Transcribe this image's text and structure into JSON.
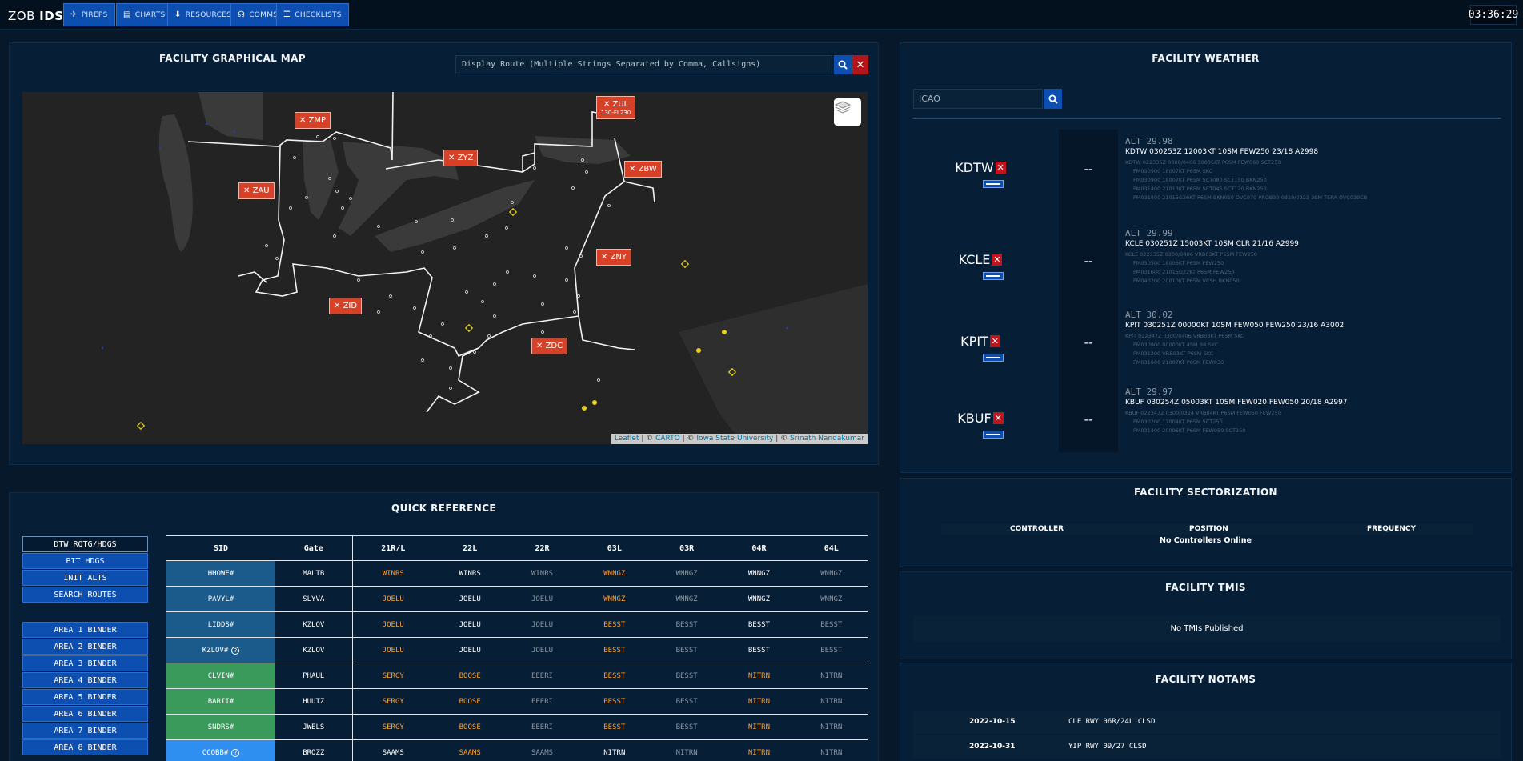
{
  "brand": {
    "name": "ZOB",
    "suffix": "IDS"
  },
  "nav": [
    {
      "label": "PIREPS",
      "icon": "pirep-icon"
    },
    {
      "label": "CHARTS",
      "icon": "charts-icon"
    },
    {
      "label": "RESOURCES",
      "icon": "resources-icon"
    },
    {
      "label": "COMMS",
      "icon": "headset-icon"
    },
    {
      "label": "CHECKLISTS",
      "icon": "list-icon"
    }
  ],
  "clock": "03:36:29",
  "map_panel": {
    "title": "FACILITY GRAPHICAL MAP",
    "route_placeholder": "Display Route (Multiple Strings Separated by Comma, Callsigns)",
    "clear_label": "✕",
    "artccs": [
      {
        "id": "ZMP",
        "sub": ""
      },
      {
        "id": "ZUL",
        "sub": "130-FL230"
      },
      {
        "id": "ZYZ",
        "sub": ""
      },
      {
        "id": "ZBW",
        "sub": ""
      },
      {
        "id": "ZAU",
        "sub": ""
      },
      {
        "id": "ZNY",
        "sub": ""
      },
      {
        "id": "ZID",
        "sub": ""
      },
      {
        "id": "ZDC",
        "sub": ""
      }
    ],
    "attribution": {
      "leaflet": "Leaflet",
      "carto": "CARTO",
      "isu": "Iowa State University",
      "author": "Srinath Nandakumar"
    }
  },
  "quick_reference": {
    "title": "QUICK REFERENCE",
    "side_buttons": [
      "DTW RQTG/HDGS",
      "PIT HDGS",
      "INIT ALTS",
      "SEARCH ROUTES"
    ],
    "binders": [
      "AREA 1 BINDER",
      "AREA 2 BINDER",
      "AREA 3 BINDER",
      "AREA 4 BINDER",
      "AREA 5 BINDER",
      "AREA 6 BINDER",
      "AREA 7 BINDER",
      "AREA 8 BINDER"
    ],
    "columns": [
      "SID",
      "Gate",
      "21R/L",
      "22L",
      "22R",
      "03L",
      "03R",
      "04R",
      "04L"
    ],
    "rows": [
      {
        "sid": "HHOWE#",
        "sid_color": "#1a5b8c",
        "gate": "MALTB",
        "cells": [
          "WINRS",
          "WINRS",
          "WINRS",
          "WNNGZ",
          "WNNGZ",
          "WNNGZ",
          "WNNGZ"
        ],
        "styles": [
          "o",
          "w",
          "g",
          "o",
          "g",
          "w",
          "g"
        ]
      },
      {
        "sid": "PAVYL#",
        "sid_color": "#1a5b8c",
        "gate": "SLYVA",
        "cells": [
          "JOELU",
          "JOELU",
          "JOELU",
          "WNNGZ",
          "WNNGZ",
          "WNNGZ",
          "WNNGZ"
        ],
        "styles": [
          "o",
          "w",
          "g",
          "o",
          "g",
          "w",
          "g"
        ]
      },
      {
        "sid": "LIDDS#",
        "sid_color": "#1a5b8c",
        "gate": "KZLOV",
        "cells": [
          "JOELU",
          "JOELU",
          "JOELU",
          "BESST",
          "BESST",
          "BESST",
          "BESST"
        ],
        "styles": [
          "o",
          "w",
          "g",
          "o",
          "g",
          "w",
          "g"
        ]
      },
      {
        "sid": "KZLOV#",
        "sid_help": "?",
        "sid_color": "#1a5b8c",
        "gate": "KZLOV",
        "cells": [
          "JOELU",
          "JOELU",
          "JOELU",
          "BESST",
          "BESST",
          "BESST",
          "BESST"
        ],
        "styles": [
          "o",
          "w",
          "g",
          "o",
          "g",
          "w",
          "g"
        ]
      },
      {
        "sid": "CLVIN#",
        "sid_color": "#3a9a5c",
        "gate": "PHAUL",
        "cells": [
          "SERGY",
          "BOOSE",
          "EEERI",
          "BESST",
          "BESST",
          "NITRN",
          "NITRN"
        ],
        "styles": [
          "o",
          "o",
          "g",
          "o",
          "g",
          "o",
          "g"
        ]
      },
      {
        "sid": "BARII#",
        "sid_color": "#3a9a5c",
        "gate": "HUUTZ",
        "cells": [
          "SERGY",
          "BOOSE",
          "EEERI",
          "BESST",
          "BESST",
          "NITRN",
          "NITRN"
        ],
        "styles": [
          "o",
          "o",
          "g",
          "o",
          "g",
          "o",
          "g"
        ]
      },
      {
        "sid": "SNDRS#",
        "sid_color": "#3a9a5c",
        "gate": "JWELS",
        "cells": [
          "SERGY",
          "BOOSE",
          "EEERI",
          "BESST",
          "BESST",
          "NITRN",
          "NITRN"
        ],
        "styles": [
          "o",
          "o",
          "g",
          "o",
          "g",
          "o",
          "g"
        ]
      },
      {
        "sid": "CCOBB#",
        "sid_help": "?",
        "sid_color": "#2f8ff0",
        "gate": "BROZZ",
        "cells": [
          "SAAMS",
          "SAAMS",
          "SAAMS",
          "NITRN",
          "NITRN",
          "NITRN",
          "NITRN"
        ],
        "styles": [
          "w",
          "o",
          "g",
          "w",
          "g",
          "o",
          "g"
        ]
      }
    ]
  },
  "weather": {
    "title": "FACILITY WEATHER",
    "icao_placeholder": "ICAO",
    "remove_label": "✕",
    "stations": [
      {
        "ident": "KDTW",
        "dash": "--",
        "alt": "ALT 29.98",
        "metar": "KDTW 030253Z 12003KT 10SM FEW250 23/18 A2998",
        "taf_lines": [
          "KDTW 022335Z 0300/0406 30005KT P6SM FEW060 SCT250",
          "FM030500 18007KT P6SM SKC",
          "FM030900 18007KT P6SM SCT080 SCT150 BKN250",
          "FM031400 21013KT P6SM SCT045 SCT120 BKN250",
          "FM031800 21015G26KT P6SM BKN050 OVC070 PROB30 0319/0323 3SM TSRA OVC030CB"
        ]
      },
      {
        "ident": "KCLE",
        "dash": "--",
        "alt": "ALT 29.99",
        "metar": "KCLE 030251Z 15003KT 10SM CLR 21/16 A2999",
        "taf_lines": [
          "KCLE 022335Z 0300/0406 VRB03KT P6SM FEW250",
          "FM030500 18006KT P6SM FEW250",
          "FM031600 21015G22KT P6SM FEW250",
          "FM040200 20010KT P6SM VCSH BKN050"
        ]
      },
      {
        "ident": "KPIT",
        "dash": "--",
        "alt": "ALT 30.02",
        "metar": "KPIT 030251Z 00000KT 10SM FEW050 FEW250 23/16 A3002",
        "taf_lines": [
          "KPIT 022347Z 0300/0406 VRB03KT P6SM SKC",
          "FM030900 00000KT 4SM BR SKC",
          "FM031200 VRB03KT P6SM SKC",
          "FM031600 21007KT P6SM FEW030"
        ]
      },
      {
        "ident": "KBUF",
        "dash": "--",
        "alt": "ALT 29.97",
        "metar": "KBUF 030254Z 05003KT 10SM FEW020 FEW050 20/18 A2997",
        "taf_lines": [
          "KBUF 022347Z 0300/0324 VRB04KT P6SM FEW050 FEW250",
          "FM030200 17004KT P6SM SCT250",
          "FM031400 20006KT P6SM FEW050 SCT250"
        ]
      }
    ]
  },
  "sectorization": {
    "title": "FACILITY SECTORIZATION",
    "columns": [
      "CONTROLLER",
      "POSITION",
      "FREQUENCY"
    ],
    "empty": "No Controllers Online"
  },
  "tmis": {
    "title": "FACILITY TMIS",
    "empty": "No TMIs Published"
  },
  "notams": {
    "title": "FACILITY NOTAMS",
    "items": [
      {
        "date": "2022-10-15",
        "text": "CLE RWY 06R/24L CLSD"
      },
      {
        "date": "2022-10-31",
        "text": "YIP RWY 09/27 CLSD"
      }
    ]
  },
  "colors": {
    "accent": "#0d4fb0",
    "danger": "#c0131b",
    "artcc": "#d64128",
    "route_fix": "#ff9d2e"
  }
}
